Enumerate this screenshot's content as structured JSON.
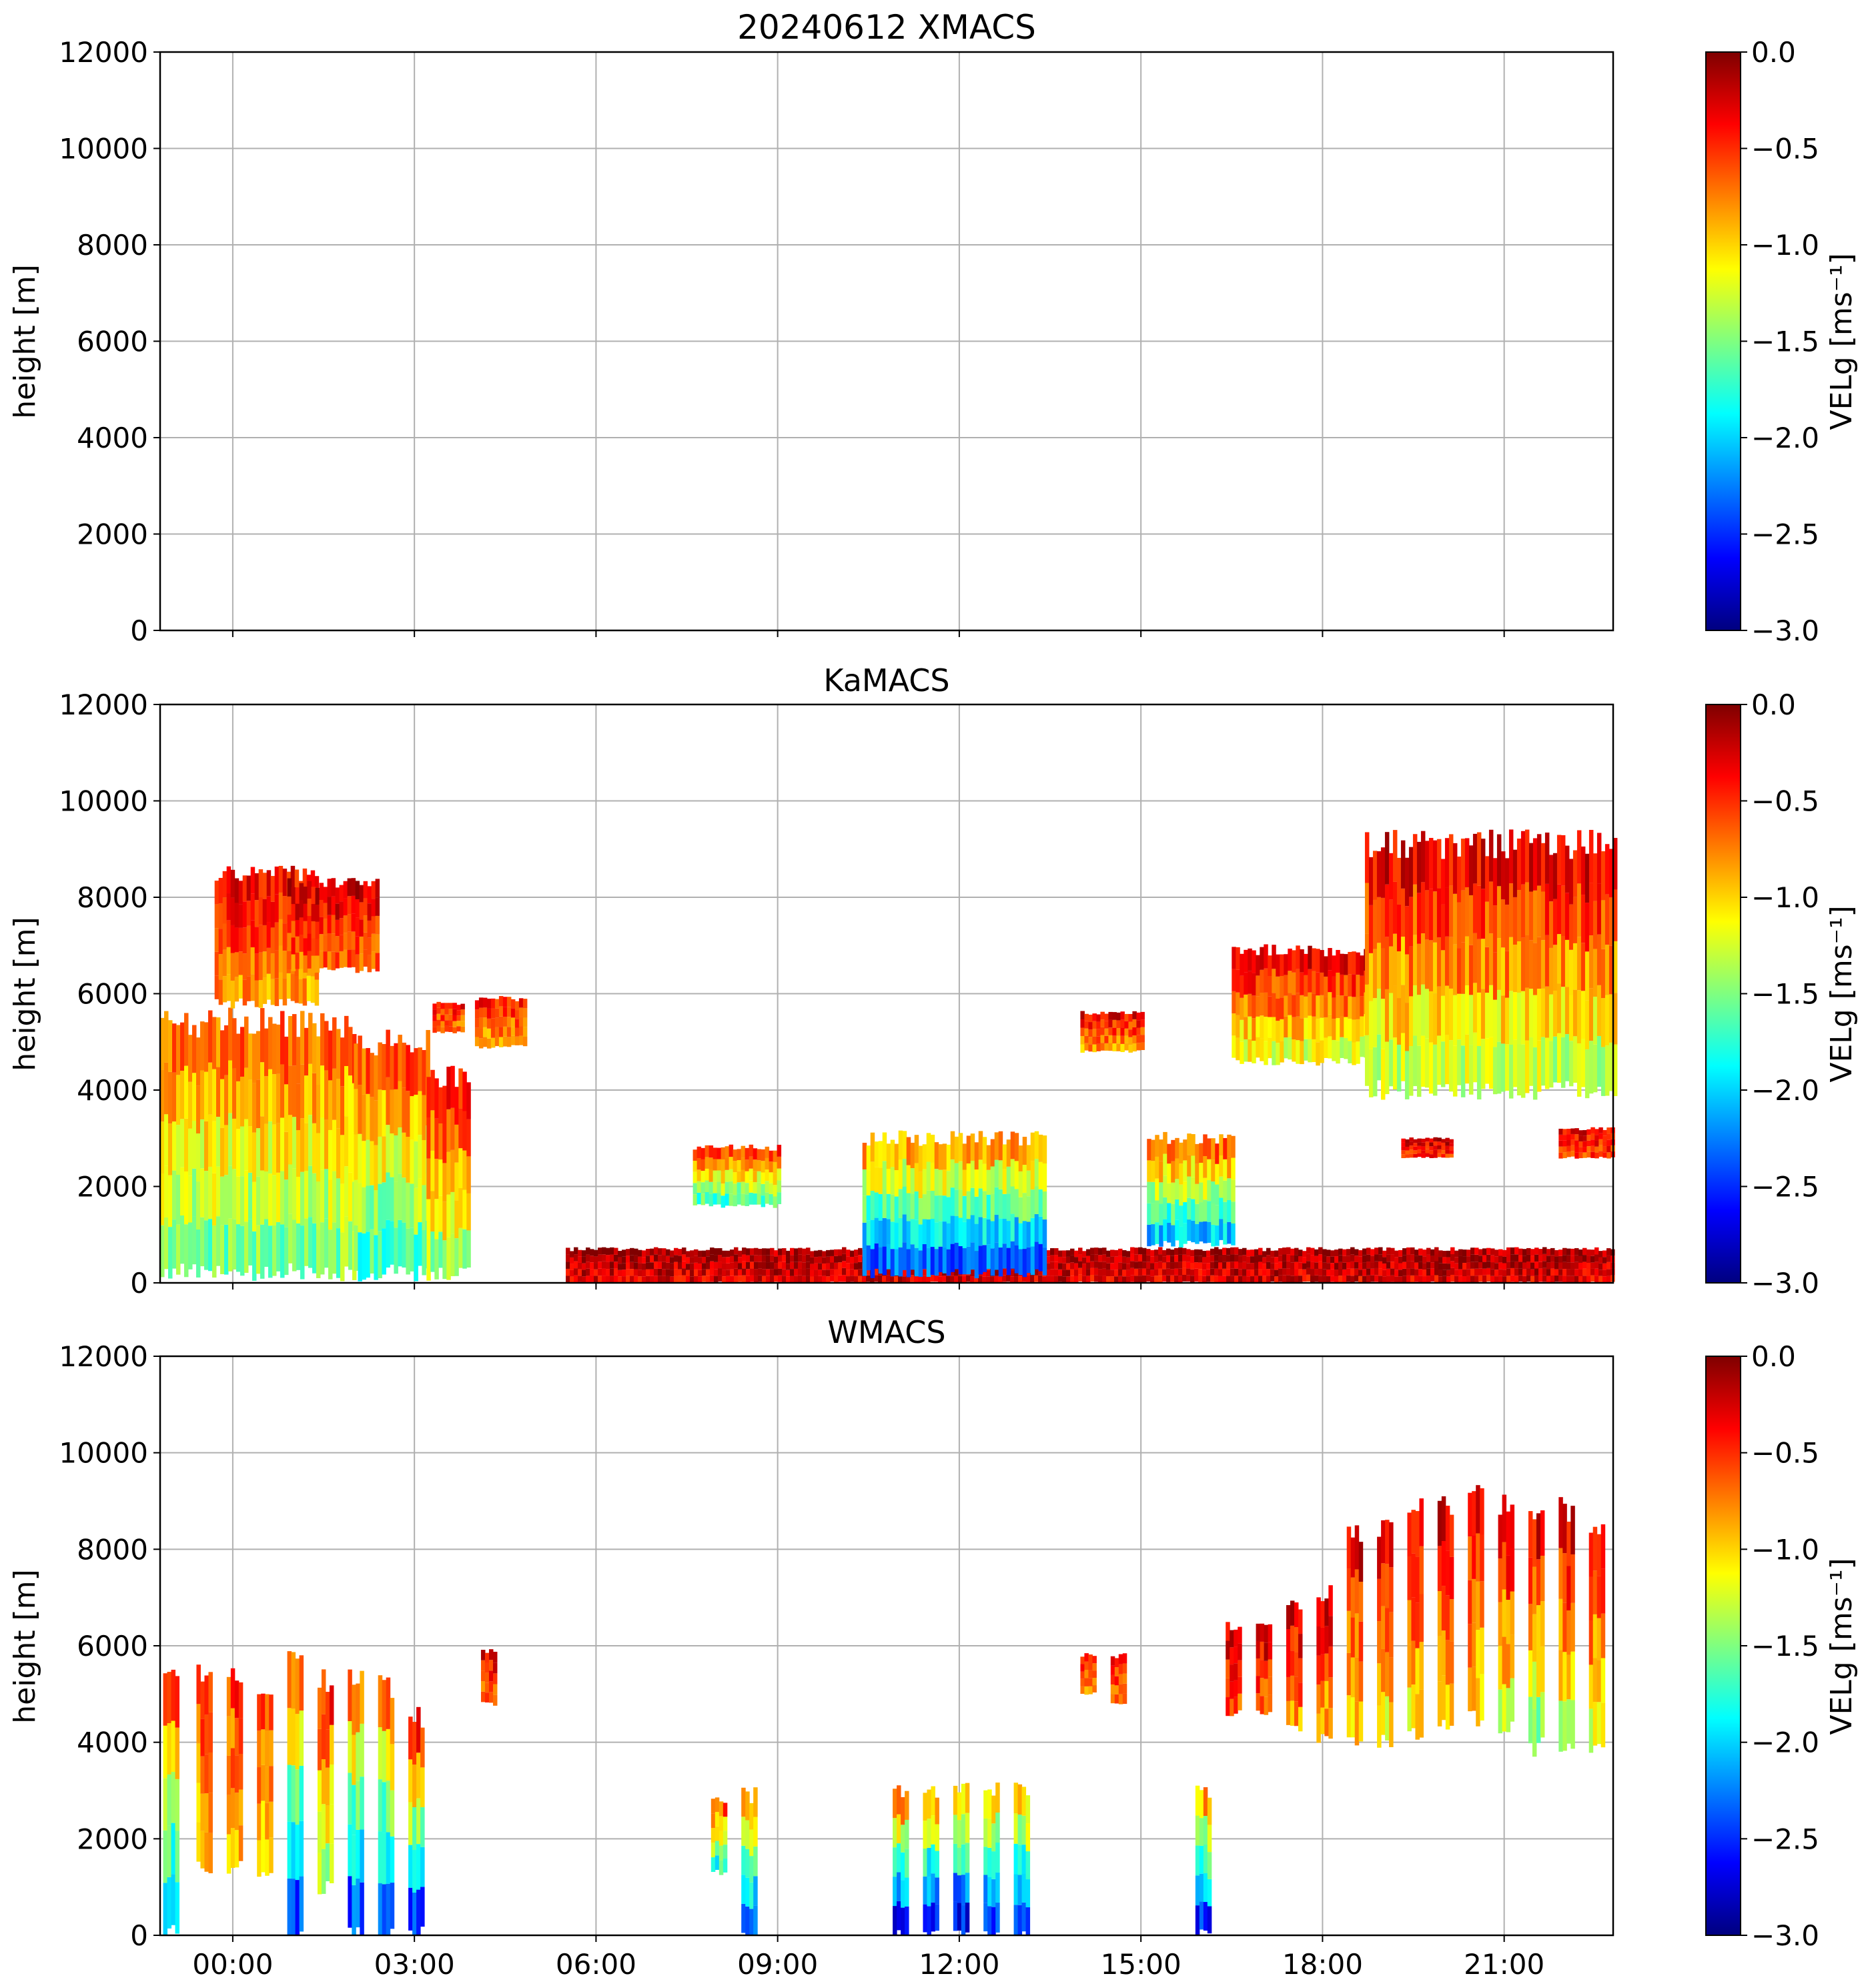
{
  "figure": {
    "description_date": "20240612"
  },
  "chart_data": [
    {
      "type": "heatmap",
      "title": "20240612 XMACS",
      "xlabel": "",
      "ylabel": "height [m]",
      "ylim": [
        0,
        12000
      ],
      "y_ticks": [
        "0",
        "2000",
        "4000",
        "6000",
        "8000",
        "10000",
        "12000"
      ],
      "x_ticks": [],
      "x_range_hours": [
        -1.2,
        22.8
      ],
      "grid": true,
      "colorbar": {
        "label": "VELg [ms⁻¹]",
        "range": [
          -3.0,
          0.0
        ],
        "ticks": [
          "0.0",
          "−0.5",
          "−1.0",
          "−1.5",
          "−2.0",
          "−2.5",
          "−3.0"
        ],
        "colormap": "jet"
      },
      "echoes": []
    },
    {
      "type": "heatmap",
      "title": "KaMACS",
      "xlabel": "",
      "ylabel": "height [m]",
      "ylim": [
        0,
        12000
      ],
      "y_ticks": [
        "0",
        "2000",
        "4000",
        "6000",
        "8000",
        "10000",
        "12000"
      ],
      "x_ticks": [],
      "x_range_hours": [
        -1.2,
        22.8
      ],
      "grid": true,
      "colorbar": {
        "label": "VELg [ms⁻¹]",
        "range": [
          -3.0,
          0.0
        ],
        "ticks": [
          "0.0",
          "−0.5",
          "−1.0",
          "−1.5",
          "−2.0",
          "−2.5",
          "−3.0"
        ],
        "colormap": "jet"
      },
      "echoes": [
        {
          "t0": -1.2,
          "t1": 2.0,
          "h0": 200,
          "h1": 5400,
          "vtop": -0.6,
          "vbot": -1.6
        },
        {
          "t0": 2.0,
          "t1": 3.2,
          "h0": 200,
          "h1": 5000,
          "vtop": -0.5,
          "vbot": -1.8
        },
        {
          "t0": 3.2,
          "t1": 3.9,
          "h0": 200,
          "h1": 4300,
          "vtop": -0.3,
          "vbot": -1.5
        },
        {
          "t0": -0.3,
          "t1": 1.4,
          "h0": 5800,
          "h1": 8500,
          "vtop": -0.3,
          "vbot": -0.9
        },
        {
          "t0": 0.9,
          "t1": 2.4,
          "h0": 6500,
          "h1": 8300,
          "vtop": -0.2,
          "vbot": -0.7
        },
        {
          "t0": 3.3,
          "t1": 3.8,
          "h0": 5200,
          "h1": 5800,
          "vtop": -0.4,
          "vbot": -0.8
        },
        {
          "t0": 4.0,
          "t1": 4.8,
          "h0": 4900,
          "h1": 5900,
          "vtop": -0.4,
          "vbot": -0.9
        },
        {
          "t0": 5.5,
          "t1": 22.8,
          "h0": 0,
          "h1": 700,
          "vtop": -0.1,
          "vbot": -0.3
        },
        {
          "t0": 7.6,
          "t1": 9.0,
          "h0": 1600,
          "h1": 2800,
          "vtop": -0.4,
          "vbot": -1.8
        },
        {
          "t0": 10.4,
          "t1": 13.4,
          "h0": 200,
          "h1": 3000,
          "vtop": -0.7,
          "vbot": -2.5
        },
        {
          "t0": 14.0,
          "t1": 15.0,
          "h0": 4800,
          "h1": 5600,
          "vtop": -0.3,
          "vbot": -0.9
        },
        {
          "t0": 15.1,
          "t1": 16.5,
          "h0": 800,
          "h1": 3000,
          "vtop": -0.5,
          "vbot": -2.2
        },
        {
          "t0": 16.5,
          "t1": 18.7,
          "h0": 4600,
          "h1": 6900,
          "vtop": -0.2,
          "vbot": -1.3
        },
        {
          "t0": 18.7,
          "t1": 22.8,
          "h0": 4000,
          "h1": 9100,
          "vtop": -0.2,
          "vbot": -1.4
        },
        {
          "t0": 19.3,
          "t1": 20.1,
          "h0": 2600,
          "h1": 3000,
          "vtop": -0.2,
          "vbot": -0.5
        },
        {
          "t0": 21.9,
          "t1": 22.8,
          "h0": 2600,
          "h1": 3200,
          "vtop": -0.3,
          "vbot": -0.6
        }
      ]
    },
    {
      "type": "heatmap",
      "title": "WMACS",
      "xlabel": "",
      "ylabel": "height [m]",
      "ylim": [
        0,
        12000
      ],
      "y_ticks": [
        "0",
        "2000",
        "4000",
        "6000",
        "8000",
        "10000",
        "12000"
      ],
      "x_ticks": [
        "00:00",
        "03:00",
        "06:00",
        "09:00",
        "12:00",
        "15:00",
        "18:00",
        "21:00"
      ],
      "x_tick_hours": [
        0,
        3,
        6,
        9,
        12,
        15,
        18,
        21
      ],
      "x_range_hours": [
        -1.2,
        22.8
      ],
      "grid": true,
      "colorbar": {
        "label": "VELg [ms⁻¹]",
        "range": [
          -3.0,
          0.0
        ],
        "ticks": [
          "0.0",
          "−0.5",
          "−1.0",
          "−1.5",
          "−2.0",
          "−2.5",
          "−3.0"
        ],
        "colormap": "jet"
      },
      "echoes": [
        {
          "t0": -1.15,
          "t1": -0.95,
          "h0": 0,
          "h1": 5500,
          "vtop": -0.5,
          "vbot": -2.2
        },
        {
          "t0": -0.6,
          "t1": -0.4,
          "h0": 1400,
          "h1": 5500,
          "vtop": -0.5,
          "vbot": -1.0
        },
        {
          "t0": -0.1,
          "t1": 0.1,
          "h0": 1400,
          "h1": 5300,
          "vtop": -0.5,
          "vbot": -1.0
        },
        {
          "t0": 0.4,
          "t1": 0.6,
          "h0": 1300,
          "h1": 5200,
          "vtop": -0.5,
          "vbot": -1.2
        },
        {
          "t0": 0.9,
          "t1": 1.1,
          "h0": 0,
          "h1": 5600,
          "vtop": -0.5,
          "vbot": -2.6
        },
        {
          "t0": 1.4,
          "t1": 1.6,
          "h0": 1000,
          "h1": 5300,
          "vtop": -0.4,
          "vbot": -1.5
        },
        {
          "t0": 1.9,
          "t1": 2.1,
          "h0": 0,
          "h1": 5500,
          "vtop": -0.5,
          "vbot": -2.6
        },
        {
          "t0": 2.4,
          "t1": 2.6,
          "h0": 0,
          "h1": 5200,
          "vtop": -0.5,
          "vbot": -2.6
        },
        {
          "t0": 2.9,
          "t1": 3.1,
          "h0": 0,
          "h1": 4500,
          "vtop": -0.3,
          "vbot": -2.6
        },
        {
          "t0": 4.1,
          "t1": 4.3,
          "h0": 4800,
          "h1": 5900,
          "vtop": -0.3,
          "vbot": -0.7
        },
        {
          "t0": 7.9,
          "t1": 8.1,
          "h0": 1300,
          "h1": 2800,
          "vtop": -0.5,
          "vbot": -1.9
        },
        {
          "t0": 8.4,
          "t1": 8.6,
          "h0": 0,
          "h1": 2900,
          "vtop": -0.6,
          "vbot": -2.5
        },
        {
          "t0": 10.9,
          "t1": 11.1,
          "h0": 0,
          "h1": 3000,
          "vtop": -0.6,
          "vbot": -2.8
        },
        {
          "t0": 11.4,
          "t1": 11.6,
          "h0": 0,
          "h1": 3000,
          "vtop": -0.8,
          "vbot": -2.8
        },
        {
          "t0": 11.9,
          "t1": 12.1,
          "h0": 0,
          "h1": 3000,
          "vtop": -0.8,
          "vbot": -2.8
        },
        {
          "t0": 12.4,
          "t1": 12.6,
          "h0": 0,
          "h1": 3000,
          "vtop": -0.8,
          "vbot": -2.6
        },
        {
          "t0": 12.9,
          "t1": 13.1,
          "h0": 0,
          "h1": 3000,
          "vtop": -0.8,
          "vbot": -2.6
        },
        {
          "t0": 14.0,
          "t1": 14.2,
          "h0": 5000,
          "h1": 5800,
          "vtop": -0.4,
          "vbot": -0.8
        },
        {
          "t0": 14.5,
          "t1": 14.7,
          "h0": 4800,
          "h1": 5800,
          "vtop": -0.4,
          "vbot": -0.8
        },
        {
          "t0": 15.9,
          "t1": 16.1,
          "h0": 0,
          "h1": 3000,
          "vtop": -0.7,
          "vbot": -2.7
        },
        {
          "t0": 16.4,
          "t1": 16.6,
          "h0": 4600,
          "h1": 6400,
          "vtop": -0.2,
          "vbot": -0.6
        },
        {
          "t0": 16.9,
          "t1": 17.1,
          "h0": 4600,
          "h1": 6500,
          "vtop": -0.2,
          "vbot": -0.7
        },
        {
          "t0": 17.4,
          "t1": 17.6,
          "h0": 4300,
          "h1": 6900,
          "vtop": -0.2,
          "vbot": -0.9
        },
        {
          "t0": 17.9,
          "t1": 18.1,
          "h0": 4100,
          "h1": 7100,
          "vtop": -0.2,
          "vbot": -1.0
        },
        {
          "t0": 18.4,
          "t1": 18.6,
          "h0": 4100,
          "h1": 8300,
          "vtop": -0.2,
          "vbot": -1.1
        },
        {
          "t0": 18.9,
          "t1": 19.1,
          "h0": 4000,
          "h1": 8500,
          "vtop": -0.2,
          "vbot": -1.2
        },
        {
          "t0": 19.4,
          "t1": 19.6,
          "h0": 4200,
          "h1": 9000,
          "vtop": -0.2,
          "vbot": -1.2
        },
        {
          "t0": 19.9,
          "t1": 20.1,
          "h0": 4300,
          "h1": 8900,
          "vtop": -0.2,
          "vbot": -1.1
        },
        {
          "t0": 20.4,
          "t1": 20.6,
          "h0": 4500,
          "h1": 9100,
          "vtop": -0.2,
          "vbot": -1.1
        },
        {
          "t0": 20.9,
          "t1": 21.1,
          "h0": 4300,
          "h1": 8900,
          "vtop": -0.2,
          "vbot": -1.3
        },
        {
          "t0": 21.4,
          "t1": 21.6,
          "h0": 3900,
          "h1": 8900,
          "vtop": -0.2,
          "vbot": -1.6
        },
        {
          "t0": 21.9,
          "t1": 22.1,
          "h0": 3800,
          "h1": 8800,
          "vtop": -0.2,
          "vbot": -1.4
        },
        {
          "t0": 22.4,
          "t1": 22.6,
          "h0": 3800,
          "h1": 8600,
          "vtop": -0.2,
          "vbot": -1.4
        }
      ]
    }
  ]
}
